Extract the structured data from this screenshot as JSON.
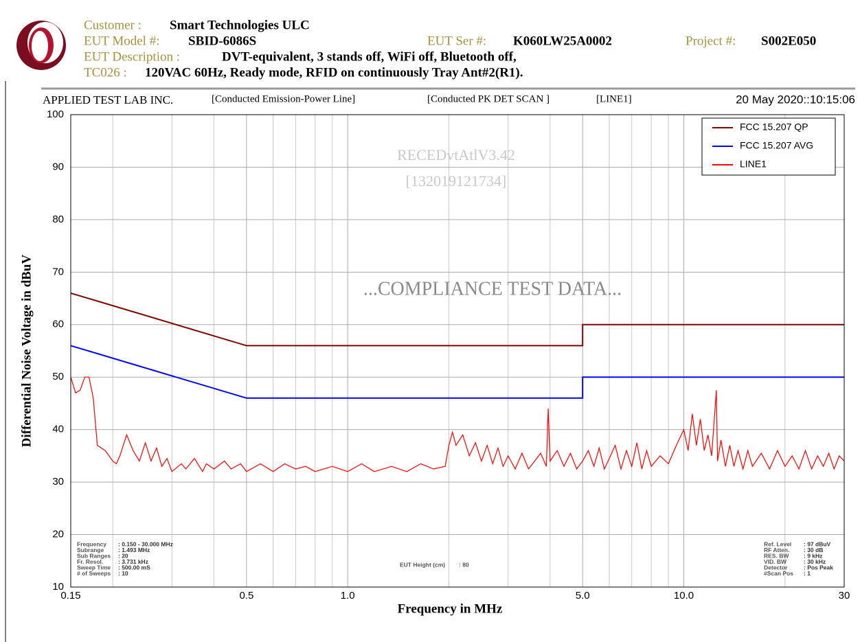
{
  "header": {
    "customer_label": "Customer :",
    "customer": "Smart Technologies ULC",
    "model_label": "EUT Model #:",
    "model": "SBID-6086S",
    "serial_label": "EUT Ser #:",
    "serial": "K060LW25A0002",
    "project_label": "Project #:",
    "project": "S002E050",
    "description_label": "EUT Description :",
    "description": "DVT-equivalent, 3 stands off, WiFi off, Bluetooth off,",
    "tc_label": "TC026 :",
    "tc": "120VAC 60Hz, Ready mode, RFID on continuously Tray Ant#2(R1)."
  },
  "chart_data": {
    "type": "line",
    "lab": "APPLIED TEST LAB INC.",
    "test": "[Conducted Emission-Power Line]",
    "scan": "[Conducted PK DET SCAN ]",
    "line": "[LINE1]",
    "date": "20 May 2020::10:15:06",
    "watermark": [
      "RECEDvtAtlV3.42",
      "[132019121734]"
    ],
    "stamp": "...COMPLIANCE TEST DATA...",
    "xlabel": "Frequency in MHz",
    "ylabel": "Differential Noise Voltage in dBuV",
    "xscale": "log",
    "xlim": [
      0.15,
      30
    ],
    "ylim": [
      10,
      100
    ],
    "xticks": [
      0.15,
      0.5,
      {
        "value": 1,
        "label": "1.0"
      },
      {
        "value": 5,
        "label": "5.0"
      },
      {
        "value": 10,
        "label": "10.0"
      },
      30
    ],
    "xminorticks": [
      0.2,
      0.3,
      0.4,
      0.6,
      0.7,
      0.8,
      0.9,
      2,
      3,
      4,
      6,
      7,
      8,
      9,
      20
    ],
    "yticks": [
      10,
      20,
      30,
      40,
      50,
      60,
      70,
      80,
      90,
      100
    ],
    "grid": true,
    "legend": "upper right",
    "series": [
      {
        "name": "FCC 15.207 QP",
        "color": "#800000",
        "x": [
          0.15,
          0.5,
          5,
          5,
          30
        ],
        "values": [
          66,
          56,
          56,
          60,
          60
        ]
      },
      {
        "name": "FCC 15.207 AVG",
        "color": "#0000ff",
        "x": [
          0.15,
          0.5,
          5,
          5,
          30
        ],
        "values": [
          56,
          46,
          46,
          50,
          50
        ]
      },
      {
        "name": "LINE1",
        "color": "#ff0000",
        "x": [
          0.15,
          0.155,
          0.16,
          0.165,
          0.17,
          0.175,
          0.18,
          0.19,
          0.2,
          0.205,
          0.21,
          0.22,
          0.23,
          0.24,
          0.25,
          0.26,
          0.27,
          0.28,
          0.29,
          0.3,
          0.32,
          0.33,
          0.35,
          0.37,
          0.38,
          0.4,
          0.43,
          0.45,
          0.48,
          0.5,
          0.55,
          0.6,
          0.65,
          0.7,
          0.75,
          0.8,
          0.9,
          1.0,
          1.1,
          1.2,
          1.35,
          1.5,
          1.65,
          1.8,
          1.95,
          2.0,
          2.05,
          2.1,
          2.2,
          2.3,
          2.4,
          2.5,
          2.6,
          2.7,
          2.8,
          2.9,
          3.0,
          3.15,
          3.3,
          3.45,
          3.6,
          3.75,
          3.9,
          3.95,
          4.0,
          4.2,
          4.4,
          4.6,
          4.8,
          5.0,
          5.2,
          5.4,
          5.6,
          5.8,
          6.0,
          6.25,
          6.5,
          6.75,
          7.0,
          7.25,
          7.5,
          7.75,
          8.0,
          8.5,
          9.0,
          9.5,
          10.0,
          10.3,
          10.6,
          10.9,
          11.2,
          11.5,
          11.8,
          12.1,
          12.5,
          12.6,
          12.9,
          13.3,
          13.7,
          14.1,
          14.5,
          15.0,
          15.5,
          16.0,
          17.0,
          18.0,
          19.0,
          20.0,
          21.0,
          22.0,
          23.0,
          24.0,
          25.0,
          26.0,
          27.0,
          28.0,
          29.0,
          30.0
        ],
        "values": [
          50,
          47,
          47.5,
          50,
          50,
          46,
          37,
          36,
          34,
          33.5,
          35,
          39,
          36,
          34,
          37.5,
          34,
          36.5,
          33,
          34.5,
          32,
          33.5,
          32.5,
          34.5,
          32,
          33.5,
          32.5,
          34,
          32.5,
          33.5,
          32,
          33.5,
          32,
          33.5,
          32.5,
          33,
          32,
          33,
          32,
          33.5,
          32,
          33,
          32,
          33.5,
          32.5,
          33,
          37,
          39.5,
          37,
          39,
          35,
          37.5,
          34,
          37,
          33.5,
          36.5,
          33,
          35,
          32.5,
          35.5,
          32.5,
          34,
          35.5,
          33,
          44,
          34,
          36,
          33,
          35.5,
          32.5,
          34,
          36,
          33,
          36.5,
          32.5,
          34.5,
          37,
          32.5,
          36,
          33,
          37.5,
          32.5,
          36,
          33,
          35,
          33.5,
          37,
          40,
          36,
          43,
          37,
          42,
          36,
          39,
          35,
          47.5,
          34,
          38,
          33,
          37,
          33,
          36,
          32.5,
          36,
          33,
          35.5,
          32.5,
          36,
          33,
          35,
          32.5,
          36,
          32.5,
          35,
          33,
          35.5,
          32.5,
          35,
          34
        ]
      }
    ],
    "info_left": [
      {
        "label": "Frequency",
        "value": ": 0.150 - 30.000 MHz"
      },
      {
        "label": "Subrange",
        "value": ": 1.493 MHz"
      },
      {
        "label": "Sub Ranges",
        "value": ": 20"
      },
      {
        "label": "Fr. Resol.",
        "value": ": 3.731 kHz"
      },
      {
        "label": "Sweep Time",
        "value": ": 500.00 mS"
      },
      {
        "label": "# of Sweeps",
        "value": ": 10"
      }
    ],
    "info_mid": {
      "label": "EUT Height (cm)",
      "value": ": 80"
    },
    "info_right": [
      {
        "label": "Ref. Level",
        "value": ": 97 dBuV"
      },
      {
        "label": "RF Atten.",
        "value": ": 30 dB"
      },
      {
        "label": "RES. BW",
        "value": ": 9 kHz"
      },
      {
        "label": "VID. BW",
        "value": ": 30 kHz"
      },
      {
        "label": "Detector",
        "value": ": Pos Peak"
      },
      {
        "label": "#Scan Pos",
        "value": ": 1"
      }
    ]
  }
}
